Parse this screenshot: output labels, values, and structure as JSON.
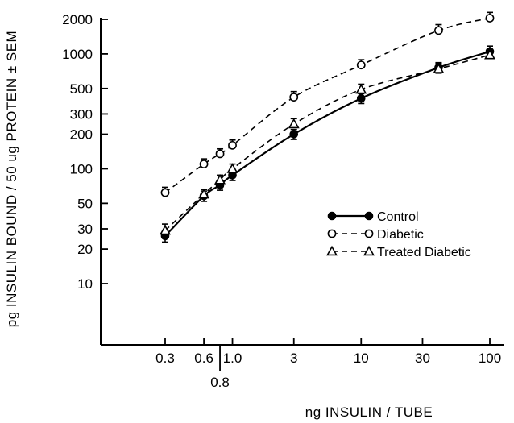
{
  "chart_data": {
    "type": "line",
    "title": "",
    "xlabel": "ng INSULIN / TUBE",
    "ylabel": "pg INSULIN BOUND / 50 ug PROTEIN ± SEM",
    "x_scale": "log",
    "y_scale": "log",
    "xlim": [
      0.3,
      100
    ],
    "ylim": [
      10,
      2000
    ],
    "x_ticks": [
      0.3,
      0.6,
      0.8,
      1.0,
      3,
      10,
      30,
      100
    ],
    "x_tick_labels": [
      "0.3",
      "0.6",
      "0.8",
      "1.0",
      "3",
      "10",
      "30",
      "100"
    ],
    "y_ticks": [
      10,
      20,
      30,
      50,
      100,
      200,
      300,
      500,
      1000,
      2000
    ],
    "y_tick_labels": [
      "10",
      "20",
      "30",
      "50",
      "100",
      "200",
      "300",
      "500",
      "1000",
      "2000"
    ],
    "legend_position": "center-right",
    "x": [
      0.3,
      0.6,
      0.8,
      1.0,
      3,
      10,
      40,
      100
    ],
    "series": [
      {
        "name": "Control",
        "line": "solid",
        "marker": "filled-circle",
        "values": [
          26,
          58,
          72,
          88,
          200,
          410,
          760,
          1050
        ],
        "sem": [
          3,
          6,
          7,
          9,
          20,
          40,
          80,
          120
        ]
      },
      {
        "name": "Diabetic",
        "line": "dashed",
        "marker": "open-circle",
        "values": [
          62,
          110,
          135,
          160,
          420,
          800,
          1600,
          2050
        ],
        "sem": [
          7,
          12,
          14,
          18,
          50,
          90,
          200,
          250
        ]
      },
      {
        "name": "Treated Diabetic",
        "line": "dashed",
        "marker": "open-triangle",
        "values": [
          29,
          60,
          80,
          100,
          245,
          490,
          740,
          980
        ],
        "sem": [
          4,
          6,
          8,
          10,
          28,
          55,
          80,
          110
        ]
      }
    ]
  }
}
